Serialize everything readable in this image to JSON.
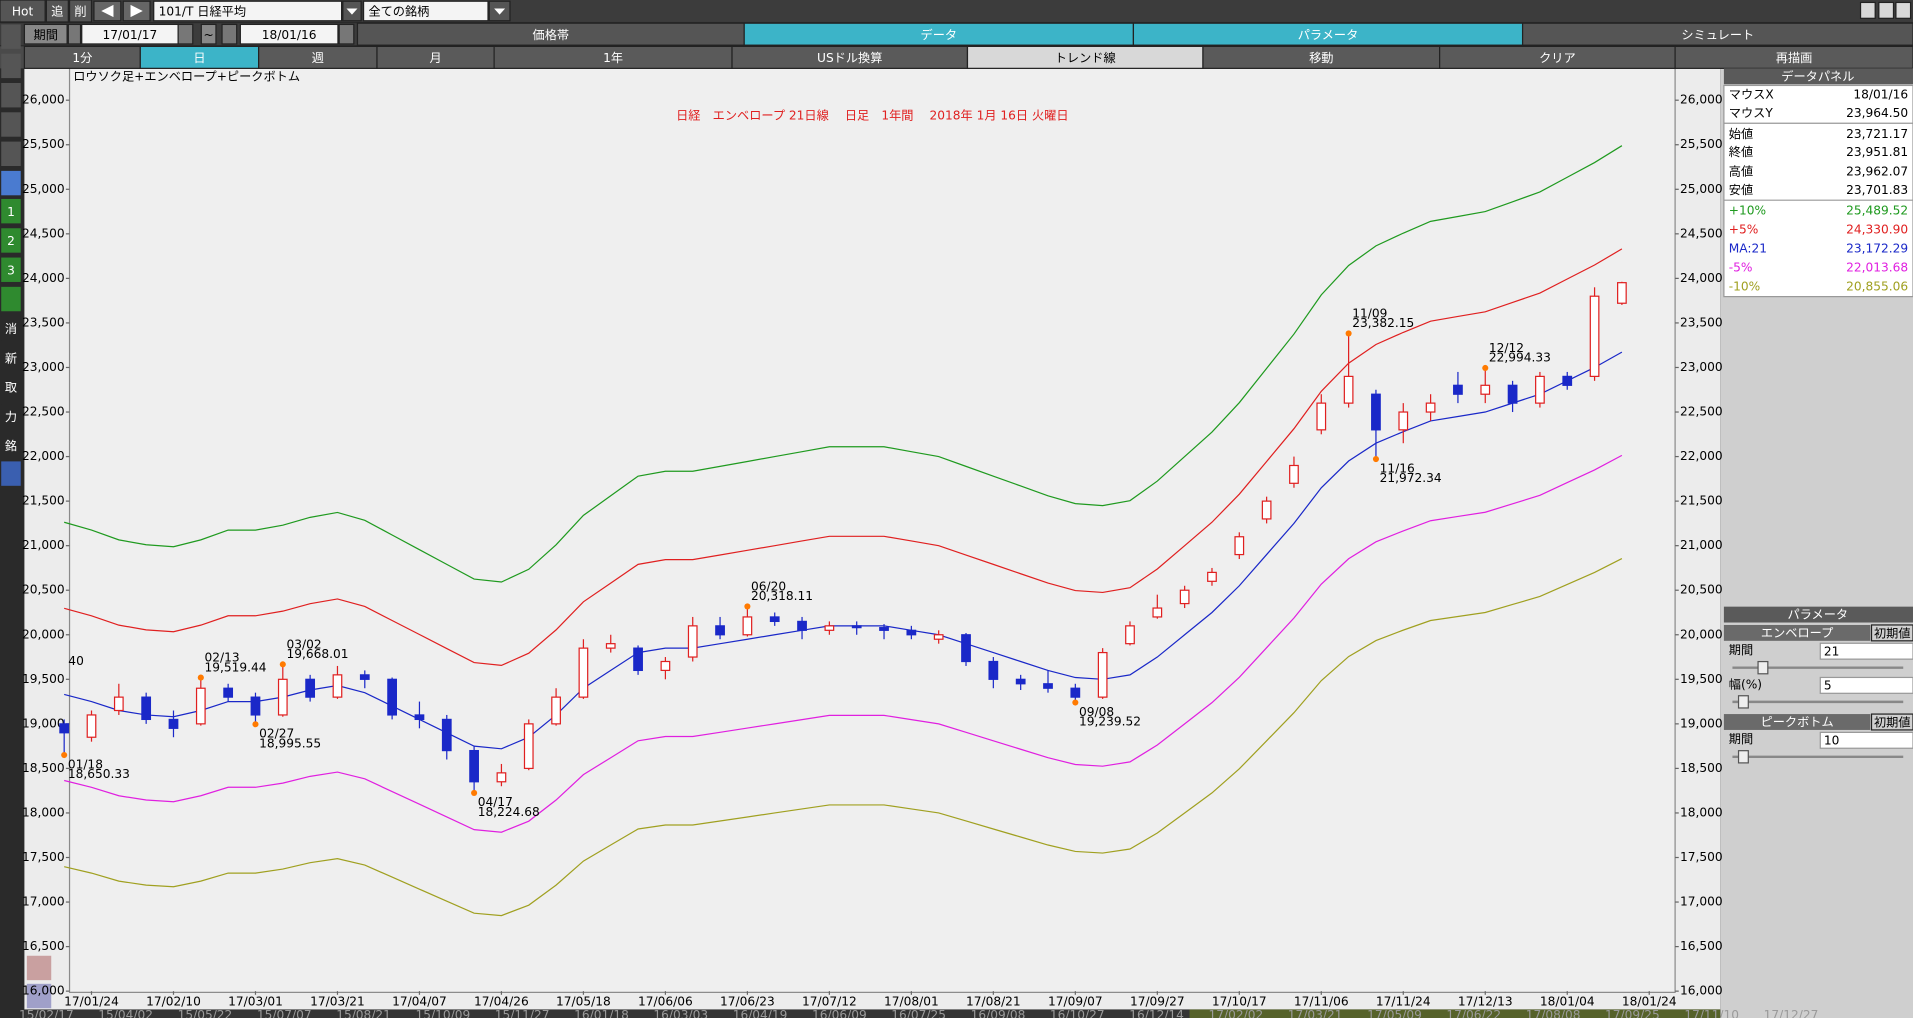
{
  "toolbar": {
    "row1": {
      "buttons": [
        "Hot",
        "追",
        "削"
      ],
      "symbol": "101/T 日経平均",
      "filter": "全ての銘柄"
    },
    "row2": {
      "period_label": "期間",
      "from": "17/01/17",
      "separator": "~",
      "to": "18/01/16",
      "tabs": [
        "価格帯",
        "データ",
        "パラメータ",
        "シミュレート"
      ],
      "active": [
        1,
        2
      ]
    },
    "row3": {
      "buttons": [
        "1分",
        "日",
        "週",
        "月",
        "1年",
        "USドル換算",
        "トレンド線",
        "移動",
        "クリア",
        "再描画"
      ],
      "active": [
        1
      ]
    }
  },
  "side_tools": [
    "1",
    "2",
    "3",
    "消",
    "新",
    "取",
    "力",
    "銘"
  ],
  "data_panel": {
    "title": "データパネル",
    "rows": [
      [
        "マウスX",
        "18/01/16"
      ],
      [
        "マウスY",
        "23,964.50"
      ],
      [
        "始値",
        "23,721.17"
      ],
      [
        "終値",
        "23,951.81"
      ],
      [
        "高値",
        "23,962.07"
      ],
      [
        "安値",
        "23,701.83"
      ]
    ],
    "series_values": [
      "25,489.52",
      "24,330.90",
      "23,172.29",
      "22,013.68",
      "20,855.06"
    ]
  },
  "parameters": {
    "title": "パラメータ",
    "groups": [
      {
        "name": "エンベロープ",
        "reset": "初期値",
        "fields": [
          {
            "label": "期間",
            "value": 21
          },
          {
            "label": "幅(%)",
            "value": 5
          }
        ]
      },
      {
        "name": "ピークボトム",
        "reset": "初期値",
        "fields": [
          {
            "label": "期間",
            "value": 10
          }
        ]
      }
    ]
  },
  "navigator": [
    "15/02/17",
    "15/04/02",
    "15/05/22",
    "15/07/07",
    "15/08/21",
    "15/10/09",
    "15/11/27",
    "16/01/18",
    "16/03/03",
    "16/04/19",
    "16/06/09",
    "16/07/25",
    "16/09/08",
    "16/10/27",
    "16/12/14",
    "17/02/02",
    "17/03/21",
    "17/05/09",
    "17/06/22",
    "17/08/08",
    "17/09/25",
    "17/11/10",
    "17/12/27"
  ],
  "chart_data": {
    "type": "candlestick",
    "title": "日経　エンベロープ 21日線　 日足　1年間　 2018年 1月 16日 火曜日",
    "subtitle": "ロウソク足+エンベロープ+ピークボトム",
    "edge_label": "40",
    "categories": [
      null,
      "17/01/24",
      null,
      null,
      "17/02/10",
      null,
      null,
      "17/03/01",
      null,
      null,
      "17/03/21",
      null,
      null,
      "17/04/07",
      null,
      null,
      "17/04/26",
      null,
      null,
      "17/05/18",
      null,
      null,
      "17/06/06",
      null,
      null,
      "17/06/23",
      null,
      null,
      "17/07/12",
      null,
      null,
      "17/08/01",
      null,
      null,
      "17/08/21",
      null,
      null,
      "17/09/07",
      null,
      null,
      "17/09/27",
      null,
      null,
      "17/10/17",
      null,
      null,
      "17/11/06",
      null,
      null,
      "17/11/24",
      null,
      null,
      "17/12/13",
      null,
      null,
      "18/01/04",
      null,
      null,
      "18/01/24"
    ],
    "open": [
      19000,
      18850,
      19150,
      19300,
      19050,
      19000,
      19400,
      19300,
      19100,
      19500,
      19300,
      19550,
      19500,
      19100,
      19050,
      18700,
      18350,
      18500,
      19000,
      19300,
      19850,
      19850,
      19600,
      19750,
      20100,
      20000,
      20200,
      20150,
      20050,
      20100,
      20080,
      20050,
      19950,
      20000,
      19700,
      19500,
      19450,
      19400,
      19300,
      19900,
      20200,
      20350,
      20600,
      20900,
      21300,
      21700,
      22300,
      22600,
      22700,
      22300,
      22500,
      22800,
      22700,
      22800,
      22600,
      22900,
      22900,
      23721.17,
      null
    ],
    "high": [
      19050,
      19150,
      19450,
      19350,
      19150,
      19519.44,
      19450,
      19350,
      19668.01,
      19550,
      19650,
      19600,
      19520,
      19250,
      19100,
      18750,
      18550,
      19050,
      19400,
      19950,
      20000,
      19880,
      19750,
      20200,
      20200,
      20318.11,
      20250,
      20200,
      20150,
      20150,
      20120,
      20100,
      20050,
      20020,
      19750,
      19550,
      19600,
      19450,
      19850,
      20150,
      20450,
      20550,
      20750,
      21150,
      21550,
      22000,
      22700,
      23382.15,
      22750,
      22600,
      22700,
      22950,
      22994.33,
      22850,
      22950,
      22950,
      23900,
      23962.07,
      null
    ],
    "low": [
      18650.33,
      18800,
      19100,
      19000,
      18850,
      18980,
      19250,
      18995.55,
      19080,
      19250,
      19280,
      19400,
      19050,
      18950,
      18600,
      18224.68,
      18300,
      18480,
      18980,
      19280,
      19800,
      19550,
      19500,
      19700,
      19950,
      19980,
      20100,
      19950,
      20000,
      20000,
      19950,
      19950,
      19900,
      19650,
      19400,
      19380,
      19350,
      19239.52,
      19280,
      19880,
      20180,
      20300,
      20550,
      20850,
      21250,
      21650,
      22250,
      22550,
      21972.34,
      22150,
      22400,
      22600,
      22600,
      22500,
      22550,
      22750,
      22850,
      23701.83,
      null
    ],
    "close": [
      18900,
      19100,
      19300,
      19050,
      18950,
      19400,
      19300,
      19100,
      19500,
      19300,
      19550,
      19500,
      19100,
      19050,
      18700,
      18350,
      18450,
      19000,
      19300,
      19850,
      19900,
      19600,
      19700,
      20100,
      20000,
      20200,
      20150,
      20050,
      20100,
      20080,
      20050,
      20000,
      20000,
      19700,
      19500,
      19450,
      19400,
      19300,
      19800,
      20100,
      20300,
      20500,
      20700,
      21100,
      21500,
      21900,
      22600,
      22900,
      22300,
      22500,
      22600,
      22700,
      22800,
      22600,
      22900,
      22800,
      23800,
      23951.81,
      null
    ],
    "up_color": "#e02020",
    "down_color": "#1a28c8",
    "peak_color": "#ff7a00",
    "peak_dates": [
      "01/18",
      null,
      null,
      null,
      null,
      "02/13",
      null,
      "02/27",
      "03/02",
      null,
      null,
      null,
      null,
      null,
      null,
      "04/17",
      null,
      null,
      null,
      null,
      null,
      null,
      null,
      null,
      null,
      "06/20",
      null,
      null,
      null,
      null,
      null,
      null,
      null,
      null,
      null,
      null,
      null,
      "09/08",
      null,
      null,
      null,
      null,
      null,
      null,
      null,
      null,
      null,
      "11/09",
      "11/16",
      null,
      null,
      null,
      "12/12",
      null,
      null,
      null,
      null,
      null,
      null
    ],
    "peak_values": [
      18650.33,
      null,
      null,
      null,
      null,
      19519.44,
      null,
      18995.55,
      19668.01,
      null,
      null,
      null,
      null,
      null,
      null,
      18224.68,
      null,
      null,
      null,
      null,
      null,
      null,
      null,
      null,
      null,
      20318.11,
      null,
      null,
      null,
      null,
      null,
      null,
      null,
      null,
      null,
      null,
      null,
      19239.52,
      null,
      null,
      null,
      null,
      null,
      null,
      null,
      null,
      null,
      23382.15,
      21972.34,
      null,
      null,
      null,
      22994.33,
      null,
      null,
      null,
      null,
      null,
      null
    ],
    "peak_value_labels": [
      "18,650.33",
      null,
      null,
      null,
      null,
      "19,519.44",
      null,
      "18,995.55",
      "19,668.01",
      null,
      null,
      null,
      null,
      null,
      null,
      "18,224.68",
      null,
      null,
      null,
      null,
      null,
      null,
      null,
      null,
      null,
      "20,318.11",
      null,
      null,
      null,
      null,
      null,
      null,
      null,
      null,
      null,
      null,
      null,
      "19,239.52",
      null,
      null,
      null,
      null,
      null,
      null,
      null,
      null,
      null,
      "23,382.15",
      "21,972.34",
      null,
      null,
      null,
      "22,994.33",
      null,
      null,
      null,
      null,
      null,
      null
    ],
    "series": [
      {
        "name": "+10%",
        "color": "#1f9a1f",
        "values": [
          21263,
          21175,
          21065,
          21010,
          20988,
          21065,
          21175,
          21175,
          21230,
          21318,
          21373,
          21285,
          21120,
          20955,
          20790,
          20625,
          20592,
          20735,
          21010,
          21340,
          21560,
          21780,
          21835,
          21835,
          21890,
          21945,
          22000,
          22055,
          22110,
          22110,
          22110,
          22055,
          22000,
          21890,
          21780,
          21670,
          21560,
          21472,
          21450,
          21505,
          21725,
          22000,
          22275,
          22605,
          22990,
          23375,
          23815,
          24145,
          24365,
          24508,
          24640,
          24695,
          24750,
          24860,
          24970,
          25135,
          25300,
          25489.52,
          null
        ]
      },
      {
        "name": "+5%",
        "color": "#e02020",
        "values": [
          20297,
          20213,
          20108,
          20055,
          20034,
          20108,
          20213,
          20213,
          20265,
          20349,
          20402,
          20318,
          20160,
          20003,
          19845,
          19688,
          19656,
          19793,
          20055,
          20370,
          20580,
          20790,
          20843,
          20843,
          20895,
          20948,
          21000,
          21053,
          21105,
          21105,
          21105,
          21053,
          21000,
          20895,
          20790,
          20685,
          20580,
          20496,
          20475,
          20528,
          20738,
          21000,
          21263,
          21578,
          21945,
          22313,
          22733,
          23048,
          23258,
          23394,
          23520,
          23573,
          23625,
          23730,
          23835,
          23993,
          24150,
          24330.9,
          null
        ]
      },
      {
        "name": "MA:21",
        "color": "#1a28c8",
        "values": [
          19330,
          19250,
          19150,
          19100,
          19080,
          19150,
          19250,
          19250,
          19300,
          19380,
          19430,
          19350,
          19200,
          19050,
          18900,
          18750,
          18720,
          18850,
          19100,
          19400,
          19600,
          19800,
          19850,
          19850,
          19900,
          19950,
          20000,
          20050,
          20100,
          20100,
          20100,
          20050,
          20000,
          19900,
          19800,
          19700,
          19600,
          19520,
          19500,
          19550,
          19750,
          20000,
          20250,
          20550,
          20900,
          21250,
          21650,
          21950,
          22150,
          22280,
          22400,
          22450,
          22500,
          22600,
          22700,
          22850,
          23000,
          23172.29,
          null
        ]
      },
      {
        "name": "-5%",
        "color": "#e020e0",
        "values": [
          18364,
          18288,
          18193,
          18145,
          18126,
          18193,
          18288,
          18288,
          18335,
          18411,
          18459,
          18383,
          18240,
          18098,
          17955,
          17813,
          17784,
          17908,
          18145,
          18430,
          18620,
          18810,
          18858,
          18858,
          18905,
          18953,
          19000,
          19048,
          19095,
          19095,
          19095,
          19048,
          19000,
          18905,
          18810,
          18715,
          18620,
          18544,
          18525,
          18573,
          18763,
          19000,
          19238,
          19523,
          19855,
          20188,
          20568,
          20853,
          21043,
          21166,
          21280,
          21328,
          21375,
          21470,
          21565,
          21708,
          21850,
          22013.68,
          null
        ]
      },
      {
        "name": "-10%",
        "color": "#a0a020",
        "values": [
          17397,
          17325,
          17235,
          17190,
          17172,
          17235,
          17325,
          17325,
          17370,
          17442,
          17487,
          17415,
          17280,
          17145,
          17010,
          16875,
          16848,
          16965,
          17190,
          17460,
          17640,
          17820,
          17865,
          17865,
          17910,
          17955,
          18000,
          18045,
          18090,
          18090,
          18090,
          18045,
          18000,
          17910,
          17820,
          17730,
          17640,
          17568,
          17550,
          17595,
          17775,
          18000,
          18225,
          18495,
          18810,
          19125,
          19485,
          19755,
          19935,
          20052,
          20160,
          20205,
          20250,
          20340,
          20430,
          20565,
          20700,
          20855.06,
          null
        ]
      }
    ],
    "ylim": [
      16000,
      26330
    ],
    "yticks": [
      {
        "value": 16000,
        "label": "16,000"
      },
      {
        "value": 16500,
        "label": "16,500"
      },
      {
        "value": 17000,
        "label": "17,000"
      },
      {
        "value": 17500,
        "label": "17,500"
      },
      {
        "value": 18000,
        "label": "18,000"
      },
      {
        "value": 18500,
        "label": "18,500"
      },
      {
        "value": 19000,
        "label": "19,000"
      },
      {
        "value": 19500,
        "label": "19,500"
      },
      {
        "value": 20000,
        "label": "20,000"
      },
      {
        "value": 20500,
        "label": "20,500"
      },
      {
        "value": 21000,
        "label": "21,000"
      },
      {
        "value": 21500,
        "label": "21,500"
      },
      {
        "value": 22000,
        "label": "22,000"
      },
      {
        "value": 22500,
        "label": "22,500"
      },
      {
        "value": 23000,
        "label": "23,000"
      },
      {
        "value": 23500,
        "label": "23,500"
      },
      {
        "value": 24000,
        "label": "24,000"
      },
      {
        "value": 24500,
        "label": "24,500"
      },
      {
        "value": 25000,
        "label": "25,000"
      },
      {
        "value": 25500,
        "label": "25,500"
      },
      {
        "value": 26000,
        "label": "26,000"
      }
    ],
    "grid": false
  }
}
